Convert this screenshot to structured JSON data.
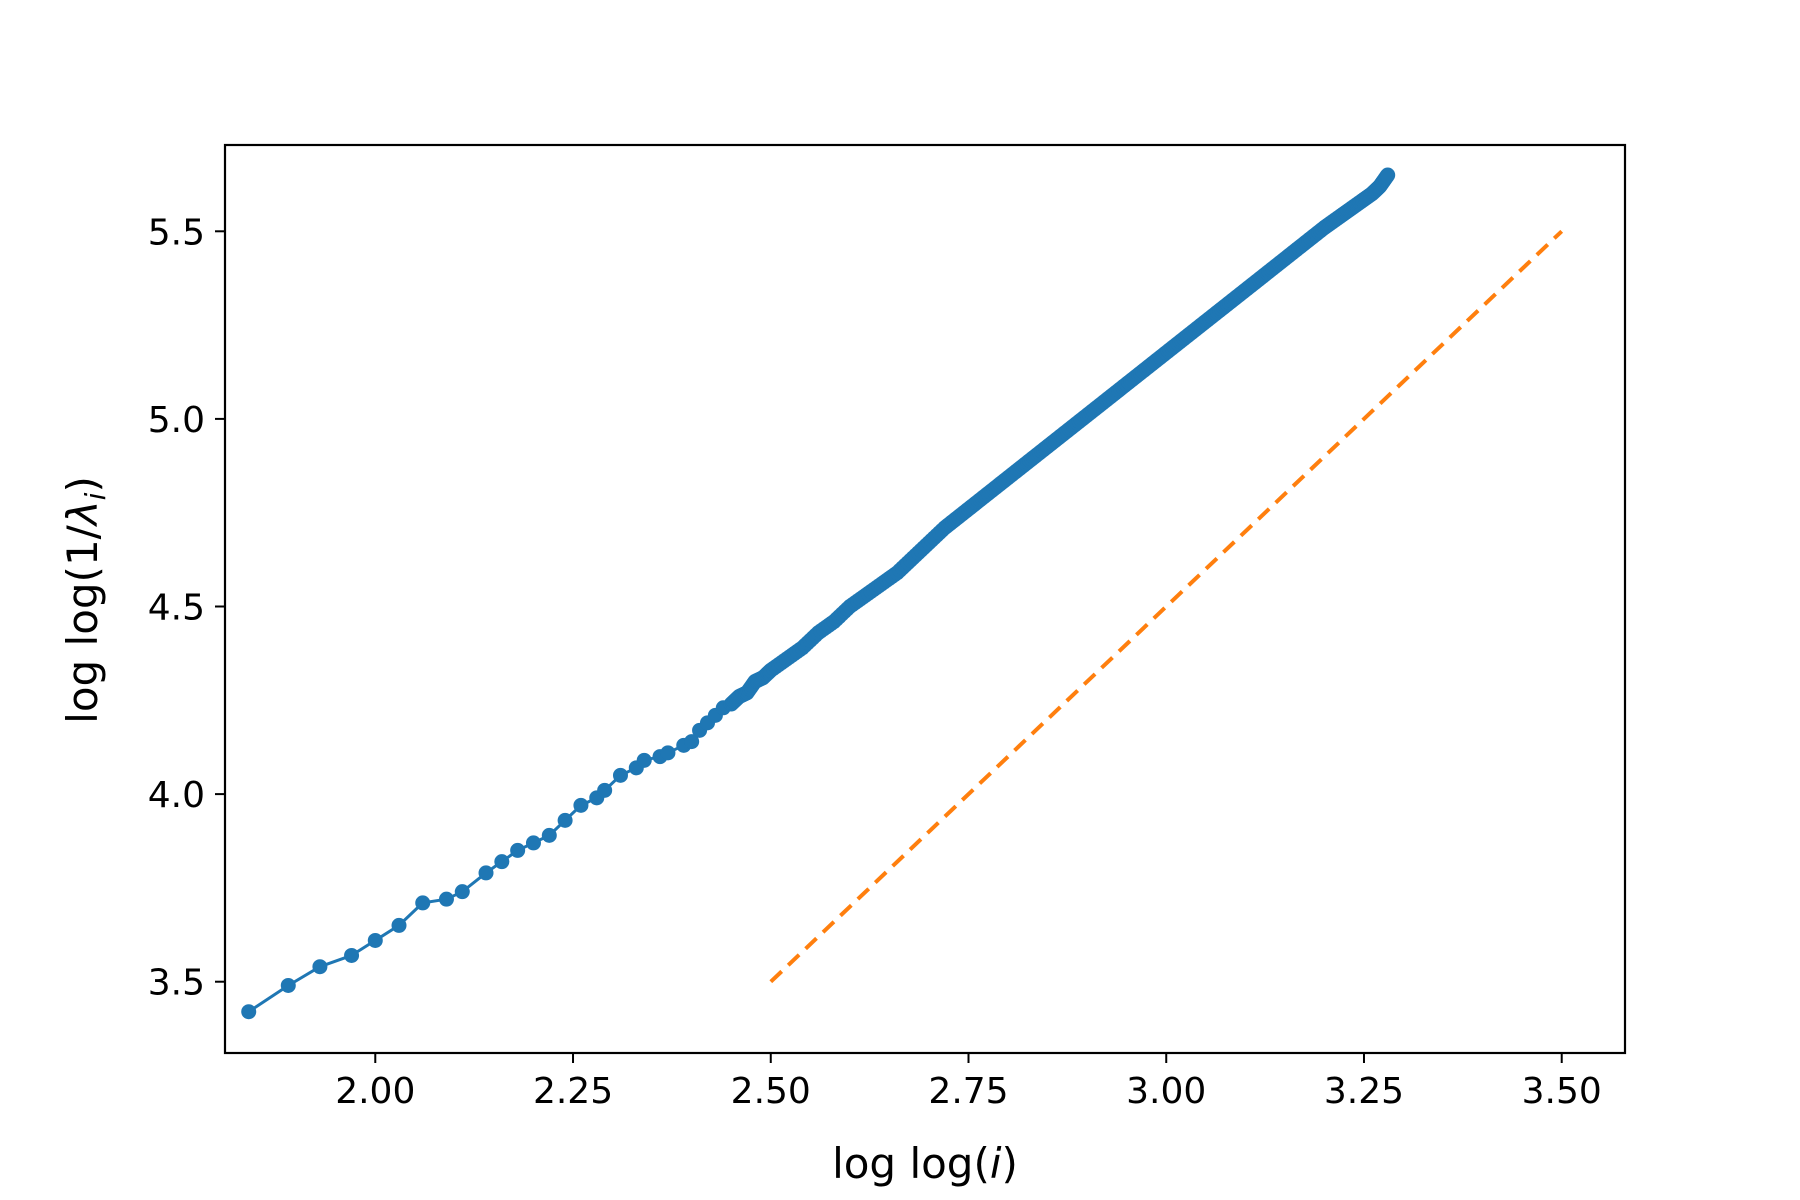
{
  "chart_data": {
    "type": "line",
    "xlabel": "log log(i)",
    "ylabel": "log log(1/λ_i)",
    "xlim": [
      1.81,
      3.58
    ],
    "ylim": [
      3.31,
      5.73
    ],
    "xticks": [
      {
        "value": 2.0,
        "label": "2.00"
      },
      {
        "value": 2.25,
        "label": "2.25"
      },
      {
        "value": 2.5,
        "label": "2.50"
      },
      {
        "value": 2.75,
        "label": "2.75"
      },
      {
        "value": 3.0,
        "label": "3.00"
      },
      {
        "value": 3.25,
        "label": "3.25"
      },
      {
        "value": 3.5,
        "label": "3.50"
      }
    ],
    "yticks": [
      {
        "value": 3.5,
        "label": "3.5"
      },
      {
        "value": 4.0,
        "label": "4.0"
      },
      {
        "value": 4.5,
        "label": "4.5"
      },
      {
        "value": 5.0,
        "label": "5.0"
      },
      {
        "value": 5.5,
        "label": "5.5"
      }
    ],
    "grid": false,
    "series": [
      {
        "style": "line-with-markers",
        "color": "#1f77b4",
        "x": [
          1.84,
          1.89,
          1.93,
          1.97,
          2.0,
          2.03,
          2.06,
          2.09,
          2.11,
          2.14,
          2.16,
          2.18,
          2.2,
          2.22,
          2.24,
          2.26,
          2.28,
          2.29,
          2.31,
          2.33,
          2.34,
          2.36,
          2.37,
          2.39,
          2.4,
          2.41,
          2.42,
          2.43,
          2.44,
          2.45,
          2.46,
          2.47,
          2.48,
          2.49,
          2.5,
          2.52,
          2.54,
          2.56,
          2.58,
          2.6,
          2.62,
          2.64,
          2.66,
          2.68,
          2.7,
          2.72,
          2.75,
          2.78,
          2.81,
          2.84,
          2.87,
          2.9,
          2.93,
          2.96,
          2.99,
          3.02,
          3.05,
          3.08,
          3.11,
          3.14,
          3.17,
          3.2,
          3.22,
          3.24,
          3.26,
          3.27,
          3.28
        ],
        "y": [
          3.42,
          3.49,
          3.54,
          3.57,
          3.61,
          3.65,
          3.71,
          3.72,
          3.74,
          3.79,
          3.82,
          3.85,
          3.87,
          3.89,
          3.93,
          3.97,
          3.99,
          4.01,
          4.05,
          4.07,
          4.09,
          4.1,
          4.11,
          4.13,
          4.14,
          4.17,
          4.19,
          4.21,
          4.23,
          4.24,
          4.26,
          4.27,
          4.3,
          4.31,
          4.33,
          4.36,
          4.39,
          4.43,
          4.46,
          4.5,
          4.53,
          4.56,
          4.59,
          4.63,
          4.67,
          4.71,
          4.76,
          4.81,
          4.86,
          4.91,
          4.96,
          5.01,
          5.06,
          5.11,
          5.16,
          5.21,
          5.26,
          5.31,
          5.36,
          5.41,
          5.46,
          5.51,
          5.54,
          5.57,
          5.6,
          5.62,
          5.65
        ]
      },
      {
        "style": "dashed",
        "color": "#ff7f0e",
        "x": [
          2.5,
          3.5
        ],
        "y": [
          3.5,
          5.5
        ]
      }
    ]
  }
}
